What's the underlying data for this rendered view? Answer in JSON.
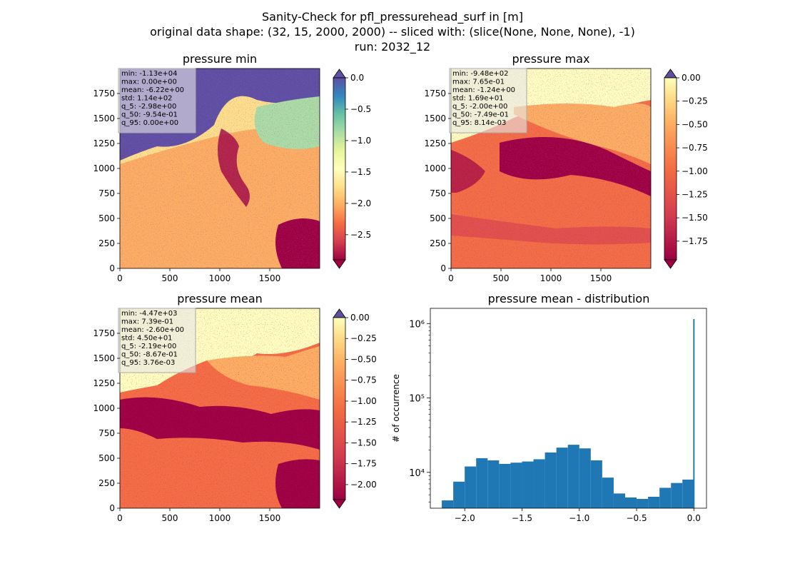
{
  "figure": {
    "title_line1": "Sanity-Check for pfl_pressurehead_surf in [m]",
    "title_line2": "original data shape: (32, 15, 2000, 2000) -- sliced with: (slice(None, None, None), -1)",
    "title_line3": "run: 2032_12"
  },
  "chart_data": [
    {
      "type": "heatmap",
      "title": "pressure min",
      "xlabel": "",
      "ylabel": "",
      "xlim": [
        0,
        2000
      ],
      "ylim": [
        0,
        2000
      ],
      "xticks": [
        "0",
        "500",
        "1000",
        "1500"
      ],
      "yticks": [
        "0",
        "250",
        "500",
        "750",
        "1000",
        "1250",
        "1500",
        "1750"
      ],
      "colormap": "Spectral",
      "colorbar": {
        "min": -2.9,
        "max": 0.0,
        "extend": "both",
        "ticks": [
          "0.0",
          "−0.5",
          "−1.0",
          "−1.5",
          "−2.0",
          "−2.5"
        ],
        "tick_values": [
          0.0,
          -0.5,
          -1.0,
          -1.5,
          -2.0,
          -2.5
        ]
      },
      "stats": [
        "min: -1.13e+04",
        "max: 0.00e+00",
        "mean: -6.22e+00",
        "std: 1.14e+02",
        "q_5: -2.98e+00",
        "q_50: -9.54e-01",
        "q_95: 0.00e+00"
      ]
    },
    {
      "type": "heatmap",
      "title": "pressure max",
      "xlabel": "",
      "ylabel": "",
      "xlim": [
        0,
        2000
      ],
      "ylim": [
        0,
        2000
      ],
      "xticks": [
        "0",
        "500",
        "1000",
        "1500"
      ],
      "yticks": [
        "0",
        "250",
        "500",
        "750",
        "1000",
        "1250",
        "1500",
        "1750"
      ],
      "colormap": "Spectral",
      "colorbar": {
        "min": -1.95,
        "max": 0.0,
        "extend": "both",
        "ticks": [
          "0.00",
          "−0.25",
          "−0.50",
          "−0.75",
          "−1.00",
          "−1.25",
          "−1.50",
          "−1.75"
        ],
        "tick_values": [
          0.0,
          -0.25,
          -0.5,
          -0.75,
          -1.0,
          -1.25,
          -1.5,
          -1.75
        ]
      },
      "stats": [
        "min: -9.48e+02",
        "max: 7.65e-01",
        "mean: -1.24e+00",
        "std: 1.69e+01",
        "q_5: -2.00e+00",
        "q_50: -7.49e-01",
        "q_95: 8.14e-03"
      ]
    },
    {
      "type": "heatmap",
      "title": "pressure mean",
      "xlabel": "",
      "ylabel": "",
      "xlim": [
        0,
        2000
      ],
      "ylim": [
        0,
        2000
      ],
      "xticks": [
        "0",
        "500",
        "1000",
        "1500"
      ],
      "yticks": [
        "0",
        "250",
        "500",
        "750",
        "1000",
        "1250",
        "1500",
        "1750"
      ],
      "colormap": "Spectral",
      "colorbar": {
        "min": -2.18,
        "max": 0.0,
        "extend": "both",
        "ticks": [
          "0.00",
          "−0.25",
          "−0.50",
          "−0.75",
          "−1.00",
          "−1.25",
          "−1.50",
          "−1.75",
          "−2.00"
        ],
        "tick_values": [
          0.0,
          -0.25,
          -0.5,
          -0.75,
          -1.0,
          -1.25,
          -1.5,
          -1.75,
          -2.0
        ]
      },
      "stats": [
        "min: -4.47e+03",
        "max: 7.39e-01",
        "mean: -2.60e+00",
        "std: 4.50e+01",
        "q_5: -2.19e+00",
        "q_50: -8.67e-01",
        "q_95: 3.76e-03"
      ]
    },
    {
      "type": "bar",
      "title": "pressure mean - distribution",
      "xlabel": "",
      "ylabel": "# of occurrence",
      "yscale": "log",
      "xlim": [
        -2.3,
        0.11
      ],
      "ylim": [
        3300,
        1600000
      ],
      "xticks": [
        -2.0,
        -1.5,
        -1.0,
        -0.5,
        0.0
      ],
      "xtick_labels": [
        "−2.0",
        "−1.5",
        "−1.0",
        "−0.5",
        "0.0"
      ],
      "yticks": [
        10000,
        100000,
        1000000
      ],
      "ytick_labels": [
        "10⁴",
        "10⁵",
        "10⁶"
      ],
      "color": "#1f77b4",
      "x": [
        -2.15,
        -2.05,
        -1.95,
        -1.85,
        -1.75,
        -1.65,
        -1.55,
        -1.45,
        -1.35,
        -1.25,
        -1.15,
        -1.05,
        -0.95,
        -0.85,
        -0.75,
        -0.65,
        -0.55,
        -0.45,
        -0.35,
        -0.25,
        -0.15,
        -0.05,
        0.0
      ],
      "values": [
        4200,
        7500,
        12000,
        15500,
        14500,
        13000,
        13500,
        14000,
        15000,
        18500,
        21500,
        23500,
        21000,
        14500,
        8500,
        5200,
        4600,
        4400,
        4700,
        6200,
        7200,
        8000,
        1150000
      ]
    }
  ]
}
